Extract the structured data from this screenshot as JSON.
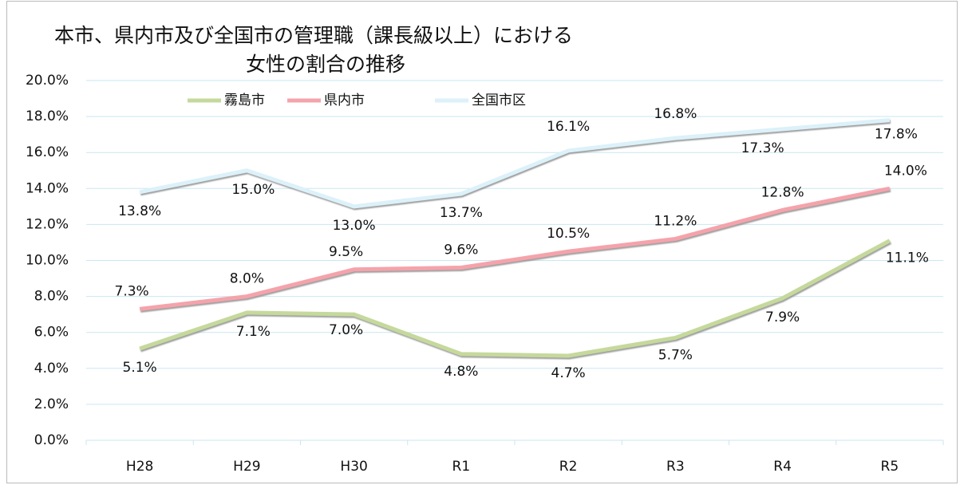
{
  "chart_data": {
    "type": "line",
    "title": [
      "本市、県内市及び全国市の管理職（課長級以上）における",
      "女性の割合の推移"
    ],
    "categories": [
      "H28",
      "H29",
      "H30",
      "R1",
      "R2",
      "R3",
      "R4",
      "R5"
    ],
    "series": [
      {
        "name": "霧島市",
        "color": "#c6d99c",
        "values": [
          5.1,
          7.1,
          7.0,
          4.8,
          4.7,
          5.7,
          7.9,
          11.1
        ],
        "value_labels": [
          "5.1%",
          "7.1%",
          "7.0%",
          "4.8%",
          "4.7%",
          "5.7%",
          "7.9%",
          "11.1%"
        ]
      },
      {
        "name": "県内市",
        "color": "#f5a3ab",
        "values": [
          7.3,
          8.0,
          9.5,
          9.6,
          10.5,
          11.2,
          12.8,
          14.0
        ],
        "value_labels": [
          "7.3%",
          "8.0%",
          "9.5%",
          "9.6%",
          "10.5%",
          "11.2%",
          "12.8%",
          "14.0%"
        ]
      },
      {
        "name": "全国市区",
        "color": "#dcf1f9",
        "values": [
          13.8,
          15.0,
          13.0,
          13.7,
          16.1,
          16.8,
          17.3,
          17.8
        ],
        "value_labels": [
          "13.8%",
          "15.0%",
          "13.0%",
          "13.7%",
          "16.1%",
          "16.8%",
          "17.3%",
          "17.8%"
        ]
      }
    ],
    "ylim": [
      0,
      20
    ],
    "yticks": [
      {
        "value": 0,
        "label": "0.0%"
      },
      {
        "value": 2,
        "label": "2.0%"
      },
      {
        "value": 4,
        "label": "4.0%"
      },
      {
        "value": 6,
        "label": "6.0%"
      },
      {
        "value": 8,
        "label": "8.0%"
      },
      {
        "value": 10,
        "label": "10.0%"
      },
      {
        "value": 12,
        "label": "12.0%"
      },
      {
        "value": 14,
        "label": "14.0%"
      },
      {
        "value": 16,
        "label": "16.0%"
      },
      {
        "value": 18,
        "label": "18.0%"
      },
      {
        "value": 20,
        "label": "20.0%"
      }
    ],
    "grid": true,
    "legend": "top"
  }
}
